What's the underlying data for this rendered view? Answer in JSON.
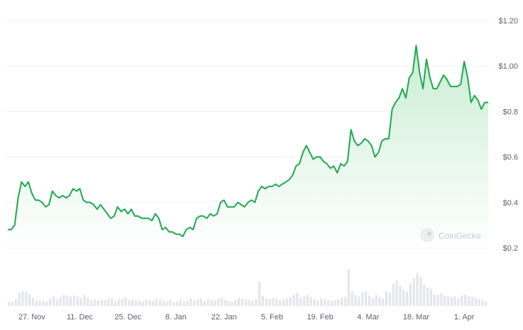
{
  "watermark": "CoinGecko",
  "colors": {
    "line": "#1fa84f",
    "area_top": "#c6ecd0",
    "grid": "#eef0f3",
    "volume": "#e3e6ea",
    "tick_text": "#5a6270"
  },
  "chart_data": {
    "type": "area",
    "title": "",
    "xlabel": "",
    "ylabel": "",
    "y_tick_labels": [
      "$1.20",
      "$1.00",
      "$0.8",
      "$0.6",
      "$0.4",
      "$0.2"
    ],
    "y_ticks": [
      1.2,
      1.0,
      0.8,
      0.6,
      0.4,
      0.2
    ],
    "ylim": [
      0.2,
      1.2
    ],
    "x_tick_labels": [
      "27. Nov",
      "11. Dec",
      "25. Dec",
      "8. Jan",
      "22. Jan",
      "5. Feb",
      "19. Feb",
      "4. Mar",
      "18. Mar",
      "1. Apr"
    ],
    "x_ticks_day": [
      7,
      21,
      35,
      49,
      63,
      77,
      91,
      105,
      119,
      133
    ],
    "x_range_day": [
      0,
      140
    ],
    "grid": true,
    "series": [
      {
        "points": [
          [
            0,
            0.28
          ],
          [
            1,
            0.28
          ],
          [
            2,
            0.3
          ],
          [
            3,
            0.42
          ],
          [
            4,
            0.49
          ],
          [
            5,
            0.47
          ],
          [
            6,
            0.49
          ],
          [
            7,
            0.44
          ],
          [
            8,
            0.41
          ],
          [
            9,
            0.41
          ],
          [
            10,
            0.4
          ],
          [
            11,
            0.38
          ],
          [
            12,
            0.39
          ],
          [
            13,
            0.45
          ],
          [
            14,
            0.43
          ],
          [
            15,
            0.42
          ],
          [
            16,
            0.43
          ],
          [
            17,
            0.42
          ],
          [
            18,
            0.43
          ],
          [
            19,
            0.46
          ],
          [
            20,
            0.45
          ],
          [
            21,
            0.46
          ],
          [
            22,
            0.41
          ],
          [
            23,
            0.4
          ],
          [
            24,
            0.4
          ],
          [
            25,
            0.39
          ],
          [
            26,
            0.37
          ],
          [
            27,
            0.39
          ],
          [
            28,
            0.37
          ],
          [
            29,
            0.35
          ],
          [
            30,
            0.33
          ],
          [
            31,
            0.34
          ],
          [
            32,
            0.38
          ],
          [
            33,
            0.36
          ],
          [
            34,
            0.37
          ],
          [
            35,
            0.35
          ],
          [
            36,
            0.37
          ],
          [
            37,
            0.34
          ],
          [
            38,
            0.34
          ],
          [
            39,
            0.33
          ],
          [
            40,
            0.33
          ],
          [
            41,
            0.33
          ],
          [
            42,
            0.32
          ],
          [
            43,
            0.35
          ],
          [
            44,
            0.33
          ],
          [
            45,
            0.28
          ],
          [
            46,
            0.29
          ],
          [
            47,
            0.27
          ],
          [
            48,
            0.27
          ],
          [
            49,
            0.26
          ],
          [
            50,
            0.26
          ],
          [
            51,
            0.25
          ],
          [
            52,
            0.28
          ],
          [
            53,
            0.29
          ],
          [
            54,
            0.28
          ],
          [
            55,
            0.33
          ],
          [
            56,
            0.34
          ],
          [
            57,
            0.34
          ],
          [
            58,
            0.33
          ],
          [
            59,
            0.35
          ],
          [
            60,
            0.34
          ],
          [
            61,
            0.35
          ],
          [
            62,
            0.4
          ],
          [
            63,
            0.41
          ],
          [
            64,
            0.38
          ],
          [
            65,
            0.38
          ],
          [
            66,
            0.38
          ],
          [
            67,
            0.4
          ],
          [
            68,
            0.39
          ],
          [
            69,
            0.38
          ],
          [
            70,
            0.4
          ],
          [
            71,
            0.41
          ],
          [
            72,
            0.4
          ],
          [
            73,
            0.45
          ],
          [
            74,
            0.47
          ],
          [
            75,
            0.46
          ],
          [
            76,
            0.47
          ],
          [
            77,
            0.47
          ],
          [
            78,
            0.48
          ],
          [
            79,
            0.47
          ],
          [
            80,
            0.48
          ],
          [
            81,
            0.49
          ],
          [
            82,
            0.5
          ],
          [
            83,
            0.52
          ],
          [
            84,
            0.56
          ],
          [
            85,
            0.57
          ],
          [
            86,
            0.62
          ],
          [
            87,
            0.65
          ],
          [
            88,
            0.62
          ],
          [
            89,
            0.59
          ],
          [
            90,
            0.6
          ],
          [
            91,
            0.6
          ],
          [
            92,
            0.58
          ],
          [
            93,
            0.57
          ],
          [
            94,
            0.55
          ],
          [
            95,
            0.56
          ],
          [
            96,
            0.53
          ],
          [
            97,
            0.57
          ],
          [
            98,
            0.56
          ],
          [
            99,
            0.58
          ],
          [
            100,
            0.72
          ],
          [
            101,
            0.67
          ],
          [
            102,
            0.65
          ],
          [
            103,
            0.66
          ],
          [
            104,
            0.68
          ],
          [
            105,
            0.67
          ],
          [
            106,
            0.65
          ],
          [
            107,
            0.6
          ],
          [
            108,
            0.62
          ],
          [
            109,
            0.67
          ],
          [
            110,
            0.68
          ],
          [
            111,
            0.68
          ],
          [
            112,
            0.81
          ],
          [
            113,
            0.84
          ],
          [
            114,
            0.86
          ],
          [
            115,
            0.9
          ],
          [
            116,
            0.86
          ],
          [
            117,
            0.95
          ],
          [
            118,
            0.97
          ],
          [
            119,
            1.09
          ],
          [
            120,
            0.97
          ],
          [
            121,
            0.9
          ],
          [
            122,
            1.03
          ],
          [
            123,
            0.95
          ],
          [
            124,
            0.9
          ],
          [
            125,
            0.9
          ],
          [
            126,
            0.93
          ],
          [
            127,
            0.96
          ],
          [
            128,
            0.94
          ],
          [
            129,
            0.91
          ],
          [
            130,
            0.91
          ],
          [
            131,
            0.91
          ],
          [
            132,
            0.92
          ],
          [
            133,
            1.02
          ],
          [
            134,
            0.95
          ],
          [
            135,
            0.84
          ],
          [
            136,
            0.87
          ],
          [
            137,
            0.85
          ],
          [
            138,
            0.81
          ],
          [
            139,
            0.84
          ],
          [
            140,
            0.84
          ]
        ]
      }
    ],
    "volume": [
      0.12,
      0.1,
      0.18,
      0.35,
      0.4,
      0.38,
      0.33,
      0.22,
      0.16,
      0.15,
      0.14,
      0.12,
      0.2,
      0.26,
      0.18,
      0.24,
      0.3,
      0.28,
      0.26,
      0.28,
      0.25,
      0.22,
      0.3,
      0.22,
      0.16,
      0.18,
      0.14,
      0.16,
      0.16,
      0.2,
      0.22,
      0.14,
      0.18,
      0.2,
      0.24,
      0.16,
      0.18,
      0.16,
      0.14,
      0.12,
      0.18,
      0.16,
      0.14,
      0.2,
      0.18,
      0.14,
      0.12,
      0.16,
      0.1,
      0.12,
      0.18,
      0.12,
      0.14,
      0.2,
      0.16,
      0.18,
      0.2,
      0.14,
      0.18,
      0.16,
      0.14,
      0.2,
      0.22,
      0.16,
      0.14,
      0.12,
      0.16,
      0.22,
      0.2,
      0.18,
      0.16,
      0.14,
      0.18,
      0.66,
      0.28,
      0.2,
      0.18,
      0.22,
      0.2,
      0.16,
      0.18,
      0.2,
      0.24,
      0.3,
      0.36,
      0.22,
      0.26,
      0.3,
      0.24,
      0.18,
      0.16,
      0.2,
      0.18,
      0.16,
      0.14,
      0.16,
      0.18,
      0.22,
      0.24,
      1.0,
      0.4,
      0.3,
      0.26,
      0.38,
      0.4,
      0.28,
      0.22,
      0.3,
      0.24,
      0.2,
      0.4,
      0.36,
      0.6,
      0.7,
      0.55,
      0.45,
      0.4,
      0.62,
      0.75,
      0.9,
      0.8,
      0.58,
      0.5,
      0.46,
      0.32,
      0.3,
      0.34,
      0.28,
      0.26,
      0.24,
      0.26,
      0.22,
      0.28,
      0.3,
      0.26,
      0.24,
      0.22,
      0.18,
      0.16,
      0.12
    ]
  }
}
